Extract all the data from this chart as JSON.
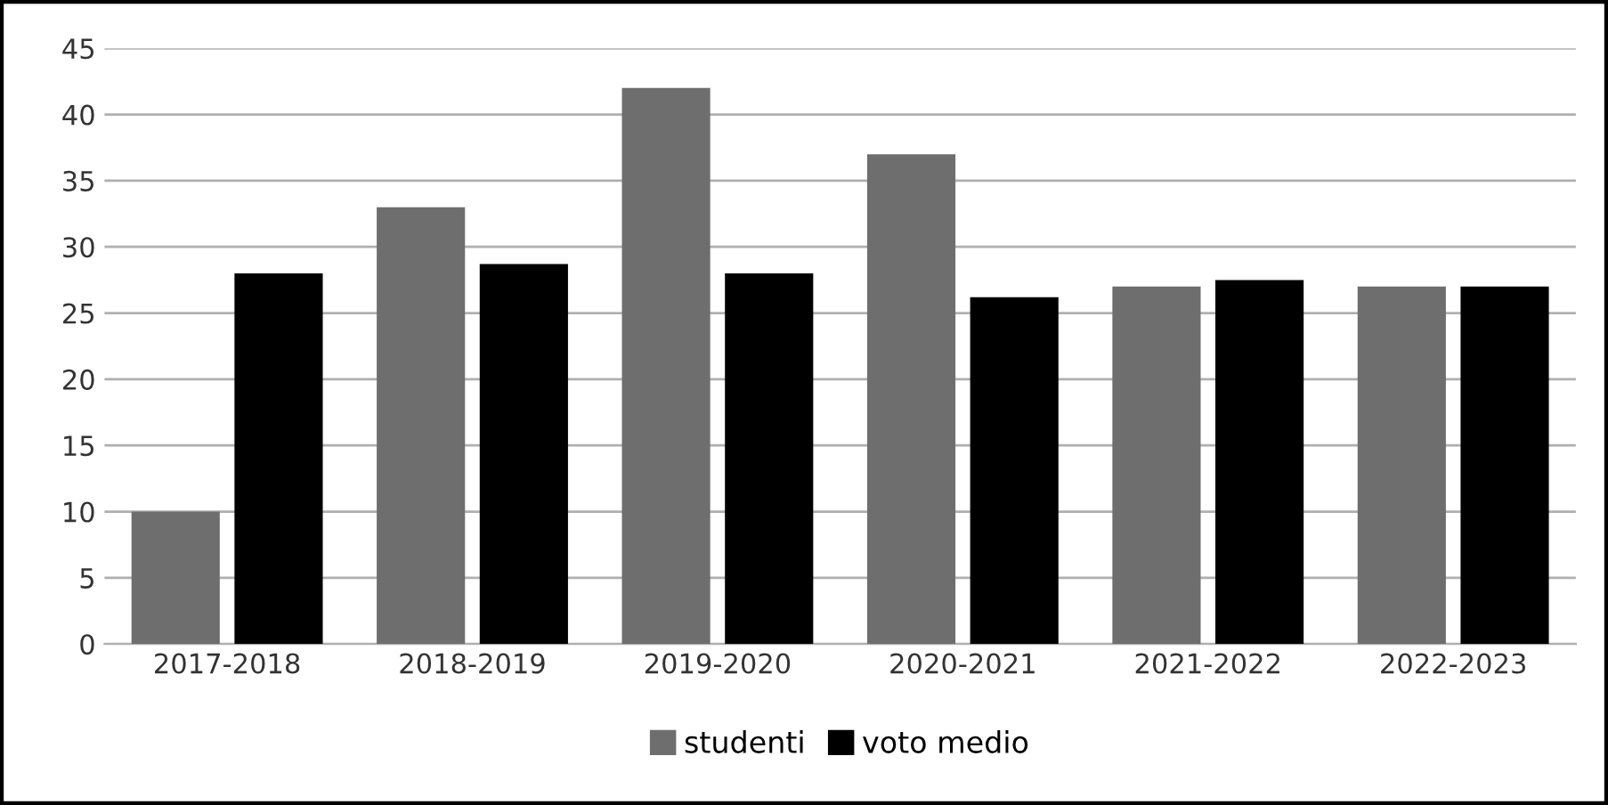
{
  "chart_data": {
    "type": "bar",
    "categories": [
      "2017-2018",
      "2018-2019",
      "2019-2020",
      "2020-2021",
      "2021-2022",
      "2022-2023"
    ],
    "series": [
      {
        "name": "studenti",
        "color": "#6e6e6e",
        "values": [
          10,
          33,
          42,
          37,
          27,
          27
        ]
      },
      {
        "name": "voto medio",
        "color": "#000000",
        "values": [
          28,
          28.7,
          28,
          26.2,
          27.5,
          27
        ]
      }
    ],
    "ylim": [
      0,
      45
    ],
    "yticks": [
      0,
      5,
      10,
      15,
      20,
      25,
      30,
      35,
      40,
      45
    ],
    "grid": "y",
    "legend": "bottom"
  }
}
